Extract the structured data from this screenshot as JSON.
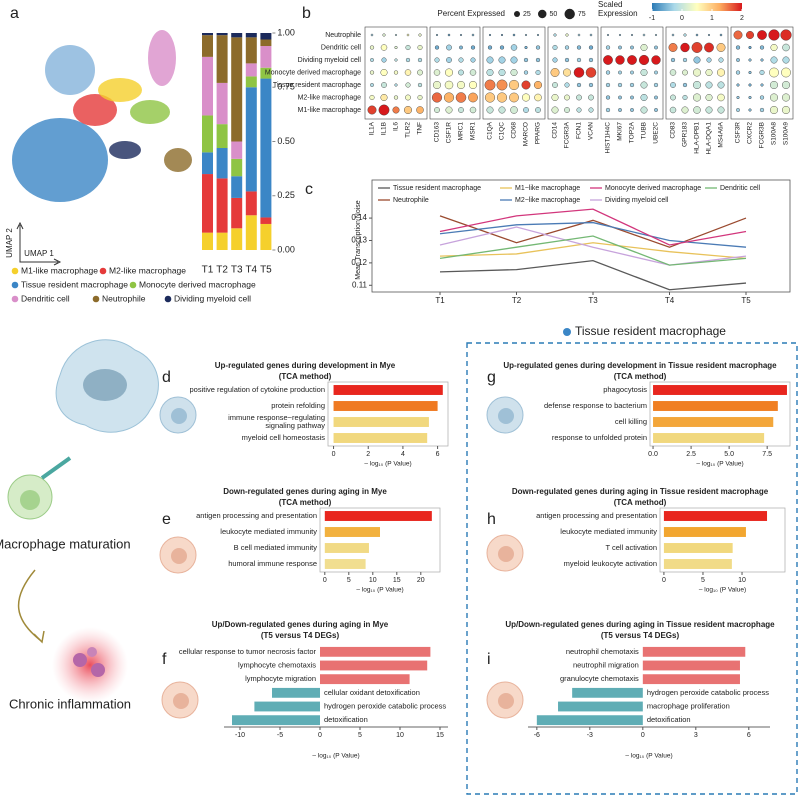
{
  "panels": {
    "a": "a",
    "b": "b",
    "c": "c",
    "d": "d",
    "e": "e",
    "f": "f",
    "g": "g",
    "h": "h",
    "i": "i"
  },
  "umap": {
    "x_label": "UMAP 1",
    "y_label": "UMAP 2"
  },
  "schematic": {
    "maturation": "Macrophage maturation",
    "inflammation": "Chronic inflammation"
  },
  "group_header": "Tissue resident macrophage",
  "chart_data": [
    {
      "type": "stacked_bar",
      "categories": [
        "T1",
        "T2",
        "T3",
        "T4",
        "T5"
      ],
      "series": [
        {
          "name": "M1-like macrophage",
          "color": "#f5d02c",
          "values": [
            0.08,
            0.08,
            0.1,
            0.16,
            0.12
          ]
        },
        {
          "name": "M2-like macrophage",
          "color": "#e53a3a",
          "values": [
            0.27,
            0.25,
            0.14,
            0.11,
            0.03
          ]
        },
        {
          "name": "Tissue resident macrophage",
          "color": "#3b86c6",
          "values": [
            0.1,
            0.14,
            0.1,
            0.48,
            0.64
          ]
        },
        {
          "name": "Monocyte derived macrophage",
          "color": "#8fc444",
          "values": [
            0.17,
            0.11,
            0.08,
            0.05,
            0.05
          ]
        },
        {
          "name": "Dendritic cell",
          "color": "#d98fc9",
          "values": [
            0.27,
            0.19,
            0.08,
            0.06,
            0.1
          ]
        },
        {
          "name": "Neutrophile",
          "color": "#8c6b2b",
          "values": [
            0.1,
            0.22,
            0.48,
            0.12,
            0.03
          ]
        },
        {
          "name": "Dividing myeloid cell",
          "color": "#1c2b5c",
          "values": [
            0.01,
            0.01,
            0.02,
            0.02,
            0.03
          ]
        }
      ],
      "ylim": [
        0,
        1
      ],
      "yticks": [
        {
          "value": 0,
          "label": "0.00"
        },
        {
          "value": 0.25,
          "label": "0.25"
        },
        {
          "value": 0.5,
          "label": "0.50"
        },
        {
          "value": 0.75,
          "label": "0.75"
        },
        {
          "value": 1,
          "label": "1.00"
        }
      ]
    },
    {
      "type": "dot_plot",
      "rows": [
        "Neutrophile",
        "Dendritic cell",
        "Dividing myeloid cell",
        "Monocyte derived macrophage",
        "Tissue resident macrophage",
        "M2-like macrophage",
        "M1-like macrophage"
      ],
      "gene_groups": [
        [
          "IL1A",
          "IL1B",
          "IL6",
          "TLR2",
          "TNF"
        ],
        [
          "CD163",
          "CSF1R",
          "MRC1",
          "MSR1"
        ],
        [
          "C1QA",
          "C1QC",
          "CD68",
          "MARCO",
          "PPARG"
        ],
        [
          "CD14",
          "FCGR3A",
          "FCN1",
          "VCAN"
        ],
        [
          "HIST1H4C",
          "MKI67",
          "TOP2A",
          "TUBB",
          "UBE2C"
        ],
        [
          "CD83",
          "GPR183",
          "HLA-DPB1",
          "HLA-DQA1",
          "MS4A6A"
        ],
        [
          "CSF3R",
          "CXCR2",
          "FCGR3B",
          "S100A8",
          "S100A9"
        ]
      ],
      "pct": [
        [
          3,
          5,
          2,
          3,
          5,
          2,
          3,
          2,
          3,
          2,
          2,
          3,
          2,
          2,
          5,
          5,
          3,
          3,
          2,
          2,
          2,
          3,
          2,
          3,
          5,
          3,
          2,
          3,
          50,
          40,
          60,
          80,
          80
        ],
        [
          10,
          25,
          5,
          15,
          15,
          10,
          20,
          8,
          10,
          10,
          10,
          25,
          5,
          10,
          15,
          10,
          10,
          10,
          10,
          8,
          8,
          30,
          8,
          50,
          55,
          75,
          60,
          50,
          10,
          5,
          10,
          30,
          35
        ],
        [
          8,
          15,
          5,
          10,
          10,
          15,
          20,
          15,
          15,
          30,
          30,
          30,
          10,
          10,
          15,
          10,
          10,
          10,
          60,
          55,
          60,
          65,
          55,
          10,
          10,
          30,
          15,
          15,
          8,
          5,
          5,
          30,
          30
        ],
        [
          10,
          30,
          10,
          25,
          20,
          25,
          40,
          20,
          25,
          30,
          30,
          30,
          10,
          15,
          50,
          40,
          70,
          70,
          10,
          8,
          8,
          30,
          8,
          25,
          20,
          40,
          30,
          40,
          10,
          5,
          15,
          60,
          60
        ],
        [
          8,
          20,
          5,
          15,
          10,
          40,
          45,
          40,
          40,
          75,
          75,
          65,
          50,
          40,
          20,
          15,
          10,
          10,
          10,
          10,
          10,
          30,
          10,
          20,
          10,
          40,
          30,
          30,
          5,
          5,
          5,
          40,
          40
        ],
        [
          15,
          30,
          10,
          20,
          15,
          65,
          65,
          70,
          60,
          65,
          65,
          60,
          40,
          35,
          30,
          20,
          20,
          20,
          10,
          8,
          8,
          30,
          8,
          20,
          15,
          40,
          30,
          35,
          5,
          5,
          10,
          40,
          40
        ],
        [
          50,
          75,
          30,
          40,
          35,
          20,
          30,
          20,
          25,
          30,
          30,
          35,
          20,
          20,
          30,
          20,
          15,
          15,
          10,
          8,
          8,
          30,
          8,
          25,
          30,
          35,
          30,
          30,
          8,
          5,
          10,
          40,
          40
        ]
      ],
      "color": [
        [
          -0.3,
          0.2,
          -0.2,
          0.5,
          0.3,
          -0.6,
          -0.7,
          -0.6,
          -0.5,
          -0.8,
          -0.8,
          -0.7,
          -0.5,
          -0.6,
          -0.2,
          0.3,
          -0.3,
          -0.4,
          -0.5,
          -0.5,
          -0.5,
          -0.3,
          -0.4,
          -0.4,
          -0.2,
          -0.6,
          -0.6,
          -0.6,
          1.6,
          1.8,
          2,
          2,
          1.9
        ],
        [
          0.3,
          0.5,
          0.2,
          0,
          0.3,
          -0.6,
          -0.3,
          -0.5,
          -0.6,
          -0.6,
          -0.6,
          -0.3,
          -0.6,
          -0.4,
          -0.2,
          -0.3,
          -0.5,
          -0.6,
          -0.3,
          -0.4,
          -0.4,
          0.2,
          -0.4,
          1.5,
          2,
          1.8,
          1.9,
          1,
          -0.5,
          -0.7,
          -0.5,
          0.4,
          0
        ],
        [
          -0.2,
          -0.3,
          -0.1,
          -0.2,
          -0.2,
          -0.2,
          -0.3,
          -0.2,
          -0.3,
          -0.3,
          -0.3,
          -0.3,
          -0.4,
          -0.4,
          -0.3,
          -0.4,
          -0.3,
          -0.4,
          2,
          2,
          2,
          2,
          2,
          -0.4,
          -0.3,
          -0.4,
          -0.3,
          -0.2,
          -0.4,
          -0.5,
          -0.5,
          -0.2,
          -0.2
        ],
        [
          0.3,
          0.5,
          0.4,
          0.6,
          0.2,
          0.2,
          0.5,
          -0.1,
          0.1,
          -0.1,
          -0.1,
          0.1,
          -0.3,
          -0.2,
          1,
          0.8,
          2,
          1.8,
          -0.3,
          -0.3,
          -0.3,
          0,
          -0.3,
          0.1,
          0.2,
          0.3,
          0.3,
          0.6,
          -0.3,
          -0.5,
          -0.2,
          0.5,
          0.5
        ],
        [
          -0.2,
          0,
          -0.2,
          0.1,
          -0.1,
          0.3,
          0.4,
          0.4,
          0.5,
          1.5,
          1.4,
          1,
          1.8,
          1.2,
          0,
          -0.2,
          -0.4,
          -0.4,
          -0.3,
          -0.3,
          -0.3,
          0,
          -0.3,
          -0.2,
          -0.4,
          0,
          -0.1,
          -0.1,
          -0.5,
          -0.6,
          -0.5,
          0.1,
          0.1
        ],
        [
          0.4,
          0.7,
          0.3,
          0.4,
          0.3,
          1.6,
          1.2,
          1.5,
          1.3,
          1,
          1,
          1,
          0.5,
          0.6,
          0.3,
          0.3,
          0,
          0,
          -0.4,
          -0.4,
          -0.4,
          -0.1,
          -0.4,
          0,
          -0.1,
          0.2,
          0.2,
          0.4,
          -0.4,
          -0.5,
          -0.3,
          0.2,
          0.2
        ],
        [
          1.8,
          2,
          1.5,
          1,
          1.2,
          0.1,
          0.2,
          0,
          0.1,
          0,
          0,
          0.1,
          -0.2,
          -0.1,
          0.2,
          0.1,
          -0.1,
          -0.1,
          -0.3,
          -0.4,
          -0.4,
          0,
          -0.4,
          0,
          0.2,
          0.1,
          0,
          0,
          -0.3,
          -0.5,
          -0.3,
          0.3,
          0.3
        ]
      ],
      "size_legend": {
        "title": "Percent Expressed",
        "values": [
          25,
          50,
          75
        ]
      },
      "color_legend": {
        "title": [
          "Scaled",
          "Expression"
        ],
        "lim": [
          -1,
          2
        ],
        "ticks": [
          -1,
          0,
          1,
          2
        ],
        "colors": [
          "#2c7bb6",
          "#abd9e9",
          "#ffffbf",
          "#fdae61",
          "#d7191c"
        ]
      }
    },
    {
      "type": "line",
      "categories": [
        "T1",
        "T2",
        "T3",
        "T4",
        "T5"
      ],
      "y_label": "Mean Transcription Noise",
      "series": [
        {
          "name": "Tissue resident macrophage",
          "color": "#595959",
          "values": [
            0.116,
            0.117,
            0.121,
            0.108,
            0.111
          ]
        },
        {
          "name": "Neutrophile",
          "color": "#9a4a2f",
          "values": [
            0.141,
            0.129,
            0.139,
            0.127,
            0.14
          ]
        },
        {
          "name": "M1−like macrophage",
          "color": "#e8c25a",
          "values": [
            0.123,
            0.124,
            0.129,
            0.125,
            0.122
          ]
        },
        {
          "name": "M2−like macrophage",
          "color": "#4b7bb5",
          "values": [
            0.133,
            0.137,
            0.138,
            0.13,
            0.127
          ]
        },
        {
          "name": "Monocyte derived macrophage",
          "color": "#d2367c",
          "values": [
            0.134,
            0.141,
            0.144,
            0.128,
            0.134
          ]
        },
        {
          "name": "Dividing myeloid cell",
          "color": "#c7a3dc",
          "values": [
            0.128,
            0.136,
            0.127,
            0.119,
            0.123
          ]
        },
        {
          "name": "Dendritic cell",
          "color": "#74b874",
          "values": [
            0.122,
            0.127,
            0.132,
            0.119,
            0.122
          ]
        }
      ],
      "ylim": [
        0.107,
        0.157
      ],
      "yticks": [
        0.11,
        0.12,
        0.13,
        0.14
      ]
    },
    {
      "type": "hbar",
      "title": [
        "Up-regulated genes during development in Mye",
        "(TCA method)"
      ],
      "title_color": "#2a6db3",
      "categories": [
        "positive regulation of cytokine production",
        "protein refolding",
        [
          "immune response−regulating",
          "signaling pathway"
        ],
        "myeloid cell homeostasis"
      ],
      "values": [
        6.3,
        6.0,
        5.5,
        5.4
      ],
      "colors": [
        "#e8261e",
        "#ef7a22",
        "#f1d87e",
        "#f1d87e"
      ],
      "xlim": [
        -0.32,
        6.6
      ],
      "xticks": [
        0,
        2,
        4,
        6
      ],
      "x_label": "– log₁₀ (P Value)"
    },
    {
      "type": "hbar",
      "title": [
        "Down-regulated genes during aging in Mye",
        "(TCA method)"
      ],
      "title_color": "#a27a55",
      "categories": [
        "antigen processing and presentation",
        "leukocyte mediated immunity",
        "B cell mediated immunity",
        "humoral immune response"
      ],
      "values": [
        22.3,
        11.5,
        9.2,
        8.5
      ],
      "colors": [
        "#e8261e",
        "#f2b13f",
        "#f1da85",
        "#f1de90"
      ],
      "xlim": [
        -1,
        24
      ],
      "xticks": [
        0,
        5,
        10,
        15,
        20
      ],
      "x_label": "– log₁₀ (P Value)"
    },
    {
      "type": "diverging_bar",
      "title": [
        "Up/Down-regulated genes during aging in Mye",
        "(T5 versus T4 DEGs)"
      ],
      "title_color": "#a27a55",
      "categories": [
        "cellular response to tumor necrosis factor",
        "lymphocyte chemotaxis",
        "lymphocyte migration",
        "cellular oxidant detoxification",
        "hydrogen peroxide catabolic process",
        "detoxification"
      ],
      "values": [
        13.8,
        13.4,
        11.2,
        -6.0,
        -8.2,
        -11.0
      ],
      "colors": [
        "#e87272",
        "#e87272",
        "#e87272",
        "#5fadb5",
        "#5fadb5",
        "#5fadb5"
      ],
      "xlim": [
        -12,
        16
      ],
      "xticks": [
        -10,
        -5,
        0,
        5,
        10,
        15
      ],
      "x_label": "– log₁₀ (P Value)"
    },
    {
      "type": "hbar",
      "title": [
        "Up-regulated genes during development in Tissue resident macrophage",
        "(TCA method)"
      ],
      "title_color": "#2a6db3",
      "categories": [
        "phagocytosis",
        "defense response to bacterium",
        "cell killing",
        "response to unfolded protein"
      ],
      "values": [
        8.8,
        8.2,
        7.9,
        7.3
      ],
      "colors": [
        "#e8261e",
        "#f07f22",
        "#f3a63a",
        "#f1d87e"
      ],
      "xlim": [
        -0.2,
        9.0
      ],
      "xticks": [
        {
          "value": 0,
          "label": "0.0"
        },
        2.5,
        {
          "value": 5,
          "label": "5.0"
        },
        7.5
      ],
      "x_label": "– log₁₀ (P Value)"
    },
    {
      "type": "hbar",
      "title": [
        "Down-regulated genes during aging in Tissue resident macrophage",
        "(TCA method)"
      ],
      "title_color": "#a27a55",
      "categories": [
        "antigen processing and presentation",
        "leukocyte mediated immunity",
        "T cell activation",
        "myeloid leukocyte activation"
      ],
      "values": [
        13.2,
        10.5,
        8.8,
        8.7
      ],
      "colors": [
        "#e8261e",
        "#f2a630",
        "#f1d87e",
        "#f1db88"
      ],
      "xlim": [
        -0.5,
        15.5
      ],
      "xticks": [
        0,
        5,
        10
      ],
      "x_label": "– log₁₀ (P Value)"
    },
    {
      "type": "diverging_bar",
      "title": [
        "Up/Down-regulated genes during aging in Tissue resident macrophage",
        "(T5 versus T4 DEGs)"
      ],
      "title_color": "#a27a55",
      "categories": [
        "neutrophil chemotaxis",
        "neutrophil migration",
        "granulocyte chemotaxis",
        "hydrogen peroxide catabolic process",
        "macrophage proliferation",
        "detoxification"
      ],
      "values": [
        5.8,
        5.5,
        5.5,
        -4.0,
        -4.8,
        -6.0
      ],
      "colors": [
        "#e87272",
        "#e87272",
        "#e87272",
        "#5fadb5",
        "#5fadb5",
        "#5fadb5"
      ],
      "xlim": [
        -6.5,
        7.2
      ],
      "xticks": [
        -6,
        -3,
        0,
        3,
        6
      ],
      "x_label": "– log₁₀ (P Value)"
    }
  ]
}
